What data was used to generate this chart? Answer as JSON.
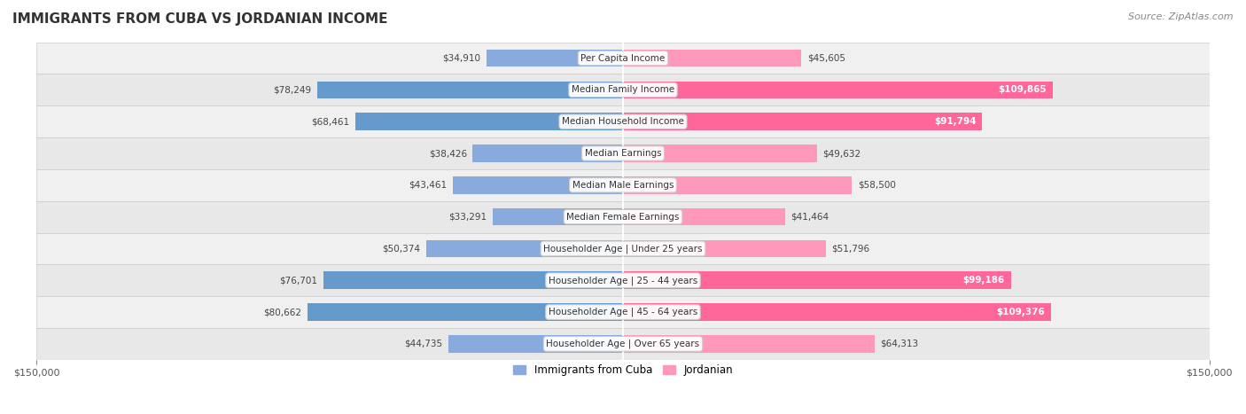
{
  "title": "IMMIGRANTS FROM CUBA VS JORDANIAN INCOME",
  "source": "Source: ZipAtlas.com",
  "categories": [
    "Per Capita Income",
    "Median Family Income",
    "Median Household Income",
    "Median Earnings",
    "Median Male Earnings",
    "Median Female Earnings",
    "Householder Age | Under 25 years",
    "Householder Age | 25 - 44 years",
    "Householder Age | 45 - 64 years",
    "Householder Age | Over 65 years"
  ],
  "cuba_values": [
    34910,
    78249,
    68461,
    38426,
    43461,
    33291,
    50374,
    76701,
    80662,
    44735
  ],
  "jordan_values": [
    45605,
    109865,
    91794,
    49632,
    58500,
    41464,
    51796,
    99186,
    109376,
    64313
  ],
  "cuba_color": "#88AADD",
  "cuba_color_dark": "#6699CC",
  "jordan_color": "#FF99BB",
  "jordan_color_dark": "#FF6699",
  "bar_height": 0.55,
  "xlim": 150000,
  "bg_color": "#F5F5F5",
  "row_colors": [
    "#EFEFEF",
    "#E8E8E8"
  ],
  "legend_cuba": "Immigrants from Cuba",
  "legend_jordan": "Jordanian"
}
